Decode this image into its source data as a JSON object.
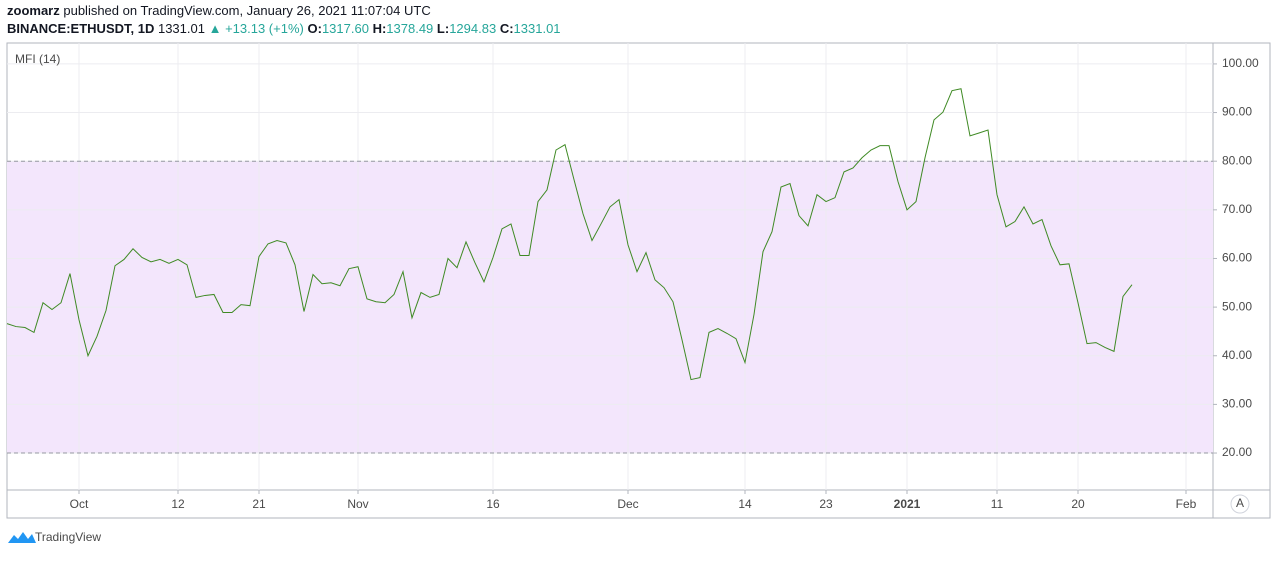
{
  "header": {
    "publisher": "zoomarz",
    "published": "published on TradingView.com, January 26, 2021 11:07:04 UTC",
    "symbol": "BINANCE:ETHUSDT, 1D",
    "last": "1331.01",
    "change": "▲ +13.13 (+1%)",
    "ohlc": [
      {
        "label": "O:",
        "value": "1317.60"
      },
      {
        "label": "H:",
        "value": "1378.49"
      },
      {
        "label": "L:",
        "value": "1294.83"
      },
      {
        "label": "C:",
        "value": "1331.01"
      }
    ]
  },
  "chart_data": {
    "type": "line",
    "title": "MFI (14)",
    "color": "#3f8a24",
    "band": [
      80,
      20
    ],
    "band_color": "#f3e6fc",
    "values": [
      46.6,
      46.0,
      45.8,
      44.8,
      50.9,
      49.5,
      50.9,
      56.9,
      47.4,
      40.0,
      44.0,
      49.3,
      58.5,
      59.8,
      62.0,
      60.2,
      59.3,
      59.8,
      59.0,
      59.8,
      58.7,
      52.0,
      52.4,
      52.6,
      48.9,
      48.9,
      50.5,
      50.3,
      60.4,
      63.0,
      63.7,
      63.2,
      58.7,
      49.1,
      56.7,
      54.8,
      55.0,
      54.4,
      57.9,
      58.3,
      51.7,
      51.1,
      50.9,
      52.6,
      57.3,
      47.8,
      53.0,
      52.0,
      52.6,
      60.0,
      58.1,
      63.4,
      59.1,
      55.2,
      60.2,
      66.1,
      67.1,
      60.6,
      60.6,
      71.7,
      74.1,
      82.3,
      83.4,
      76.2,
      69.2,
      63.7,
      67.1,
      70.6,
      72.1,
      62.8,
      57.3,
      61.2,
      55.6,
      54.0,
      51.1,
      43.3,
      35.1,
      35.5,
      44.8,
      45.6,
      44.6,
      43.5,
      38.6,
      48.5,
      61.4,
      65.5,
      74.7,
      75.4,
      68.8,
      66.7,
      73.1,
      71.7,
      72.5,
      77.8,
      78.6,
      80.7,
      82.3,
      83.2,
      83.2,
      75.8,
      70.0,
      71.7,
      80.7,
      88.5,
      90.1,
      94.5,
      94.9,
      85.2,
      85.8,
      86.4,
      73.1,
      66.5,
      67.6,
      70.6,
      67.1,
      68.0,
      62.6,
      58.7,
      58.9,
      50.9,
      42.5,
      42.7,
      41.7,
      40.9,
      52.2,
      54.6
    ],
    "xlim": [
      0,
      134
    ],
    "xticks": [
      {
        "value": 8,
        "label": "Oct"
      },
      {
        "value": 19,
        "label": "12"
      },
      {
        "value": 28,
        "label": "21"
      },
      {
        "value": 39,
        "label": "Nov"
      },
      {
        "value": 54,
        "label": "16"
      },
      {
        "value": 69,
        "label": "Dec"
      },
      {
        "value": 82,
        "label": "14"
      },
      {
        "value": 91,
        "label": "23"
      },
      {
        "value": 100,
        "label": "2021"
      },
      {
        "value": 110,
        "label": "11"
      },
      {
        "value": 119,
        "label": "20"
      },
      {
        "value": 131,
        "label": "Feb"
      }
    ],
    "ylim": [
      12.4,
      104.3
    ],
    "yticks": [
      {
        "value": 100,
        "label": "100.00"
      },
      {
        "value": 90,
        "label": "90.00"
      },
      {
        "value": 80,
        "label": "80.00"
      },
      {
        "value": 70,
        "label": "70.00"
      },
      {
        "value": 60,
        "label": "60.00"
      },
      {
        "value": 50,
        "label": "50.00"
      },
      {
        "value": 40,
        "label": "40.00"
      },
      {
        "value": 30,
        "label": "30.00"
      },
      {
        "value": 20,
        "label": "20.00"
      }
    ],
    "grid": true,
    "scale_button": "A"
  },
  "footer": {
    "brand": "TradingView"
  }
}
